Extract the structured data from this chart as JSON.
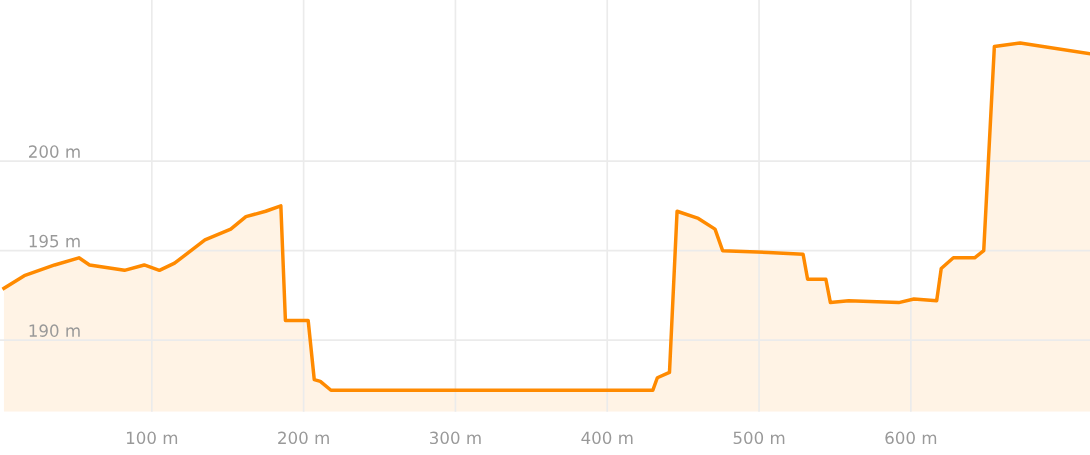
{
  "chart_data": {
    "type": "area",
    "color": "#ff8a00",
    "grid": true,
    "line_style": "solid",
    "x": [
      2.6,
      16,
      36,
      52,
      59,
      82,
      95,
      105,
      115,
      135,
      152,
      162,
      175,
      185,
      188,
      203,
      207,
      211,
      218,
      430,
      433,
      441,
      446,
      460,
      471,
      476,
      506,
      529,
      532,
      544,
      547,
      559,
      592,
      602,
      617,
      620,
      628,
      642,
      648,
      655,
      672,
      718
    ],
    "values": [
      192.9,
      193.6,
      194.2,
      194.6,
      194.2,
      193.9,
      194.2,
      193.9,
      194.3,
      195.6,
      196.2,
      196.9,
      197.2,
      197.5,
      191.1,
      191.1,
      187.8,
      187.7,
      187.2,
      187.2,
      187.9,
      188.2,
      197.2,
      196.8,
      196.2,
      195.0,
      194.9,
      194.8,
      193.4,
      193.4,
      192.1,
      192.2,
      192.1,
      192.3,
      192.2,
      194.0,
      194.6,
      194.6,
      195.0,
      206.4,
      206.6,
      206.0
    ],
    "xlim": [
      0,
      718
    ],
    "ylim": [
      186,
      209
    ],
    "xticks": [
      {
        "value": 100,
        "label": "100 m"
      },
      {
        "value": 200,
        "label": "200 m"
      },
      {
        "value": 300,
        "label": "300 m"
      },
      {
        "value": 400,
        "label": "400 m"
      },
      {
        "value": 500,
        "label": "500 m"
      },
      {
        "value": 600,
        "label": "600 m"
      }
    ],
    "yticks": [
      {
        "value": 190,
        "label": "190 m"
      },
      {
        "value": 195,
        "label": "195 m"
      },
      {
        "value": 200,
        "label": "200 m"
      }
    ]
  }
}
